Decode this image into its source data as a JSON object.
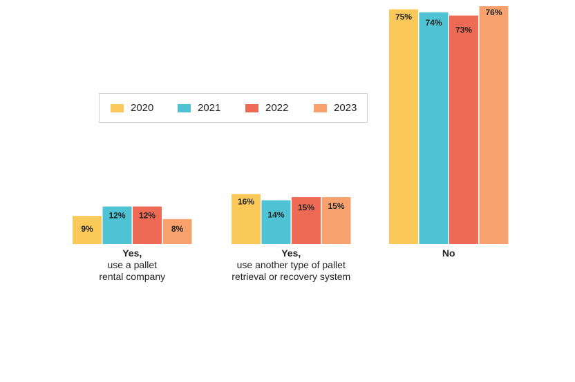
{
  "chart_data": {
    "type": "bar",
    "title": "",
    "xlabel": "",
    "ylabel": "",
    "ylim": [
      0,
      80
    ],
    "categories": [
      [
        "Yes,",
        "use a pallet",
        "rental company"
      ],
      [
        "Yes,",
        "use another type of pallet",
        "retrieval or recovery system"
      ],
      [
        "No"
      ]
    ],
    "series": [
      {
        "name": "2020",
        "color": "#FBC95A",
        "values": [
          9,
          16,
          75
        ],
        "labels": [
          "9%",
          "16%",
          "75%"
        ]
      },
      {
        "name": "2021",
        "color": "#4DC3D4",
        "values": [
          12,
          14,
          74
        ],
        "labels": [
          "12%",
          "14%",
          "74%"
        ]
      },
      {
        "name": "2022",
        "color": "#EE6A55",
        "values": [
          12,
          15,
          73
        ],
        "labels": [
          "12%",
          "15%",
          "73%"
        ]
      },
      {
        "name": "2023",
        "color": "#F7A26E",
        "values": [
          8,
          15,
          76
        ],
        "labels": [
          "8%",
          "15%",
          "76%"
        ]
      }
    ],
    "legend": "top-left"
  }
}
